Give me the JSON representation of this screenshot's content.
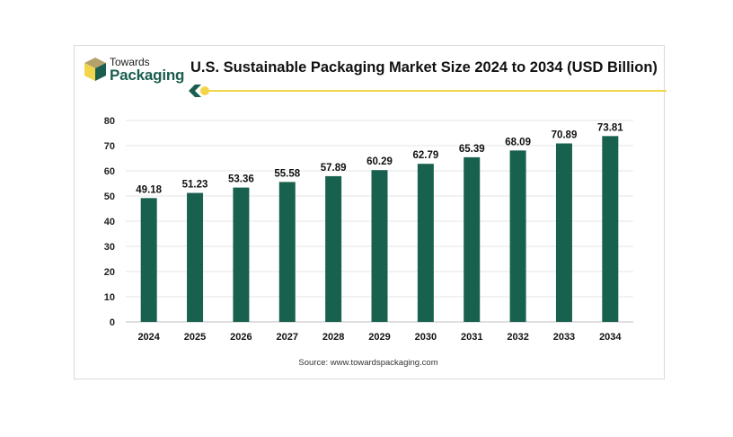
{
  "brand": {
    "line1": "Towards",
    "line2": "Packaging",
    "icon": "box-logo-icon"
  },
  "source": "Source: www.towardspackaging.com",
  "colors": {
    "bar": "#18614f",
    "accent": "#f2d548",
    "brand_green": "#1a5e50",
    "grid": "#e6e6e6"
  },
  "chart_data": {
    "type": "bar",
    "title": "U.S. Sustainable Packaging Market Size 2024 to 2034 (USD Billion)",
    "xlabel": "",
    "ylabel": "",
    "categories": [
      "2024",
      "2025",
      "2026",
      "2027",
      "2028",
      "2029",
      "2030",
      "2031",
      "2032",
      "2033",
      "2034"
    ],
    "values": [
      49.18,
      51.23,
      53.36,
      55.58,
      57.89,
      60.29,
      62.79,
      65.39,
      68.09,
      70.89,
      73.81
    ],
    "value_labels": [
      "49.18",
      "51.23",
      "53.36",
      "55.58",
      "57.89",
      "60.29",
      "62.79",
      "65.39",
      "68.09",
      "70.89",
      "73.81"
    ],
    "ylim": [
      0,
      80
    ],
    "yticks": [
      "0",
      "10",
      "20",
      "30",
      "40",
      "50",
      "60",
      "70",
      "80"
    ],
    "grid": true,
    "legend": "none"
  }
}
